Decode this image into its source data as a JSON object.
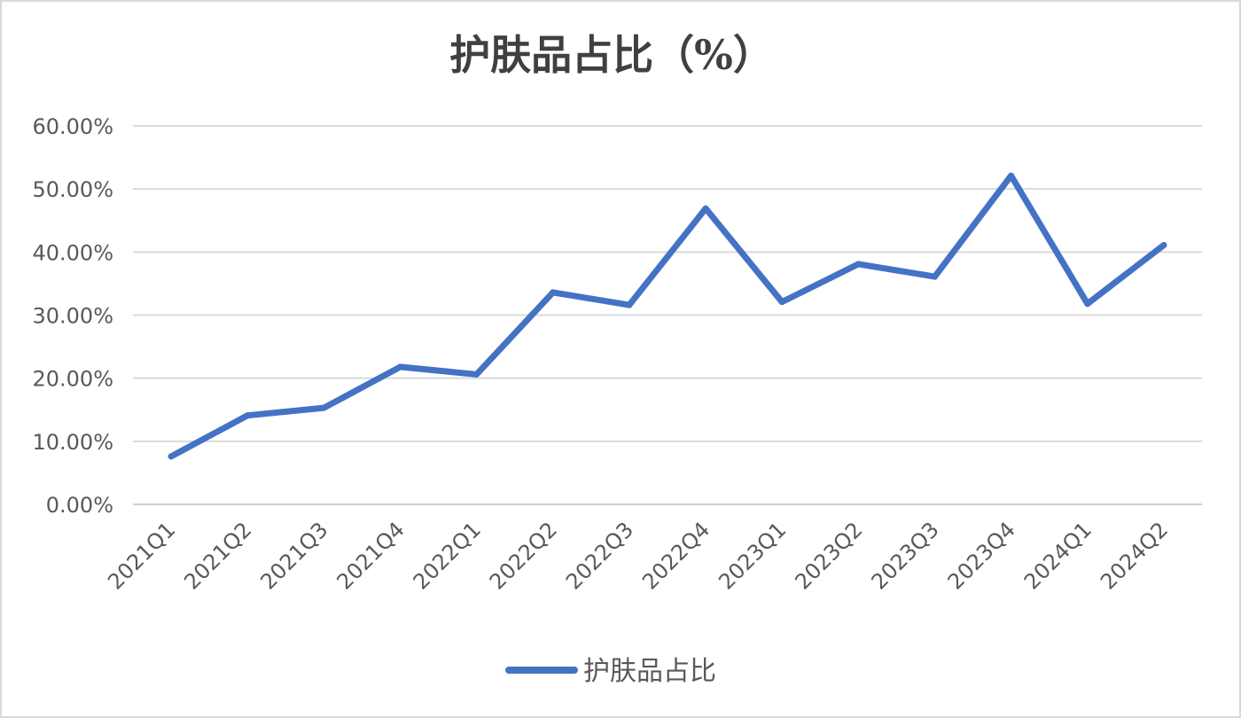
{
  "chart_data": {
    "type": "line",
    "title": "护肤品占比（%）",
    "xlabel": "",
    "ylabel": "",
    "categories": [
      "2021Q1",
      "2021Q2",
      "2021Q3",
      "2021Q4",
      "2022Q1",
      "2022Q2",
      "2022Q3",
      "2022Q4",
      "2023Q1",
      "2023Q2",
      "2023Q3",
      "2023Q4",
      "2024Q1",
      "2024Q2"
    ],
    "series": [
      {
        "name": "护肤品占比",
        "color": "#4472C4",
        "values": [
          7.6,
          14.1,
          15.3,
          21.8,
          20.6,
          33.6,
          31.6,
          46.9,
          32.1,
          38.1,
          36.1,
          52.1,
          31.8,
          41.1
        ]
      }
    ],
    "ylim": [
      0,
      60
    ],
    "yticks": [
      0,
      10,
      20,
      30,
      40,
      50,
      60
    ],
    "ytick_labels": [
      "0.00%",
      "10.00%",
      "20.00%",
      "30.00%",
      "40.00%",
      "50.00%",
      "60.00%"
    ],
    "grid": true,
    "legend": "bottom-center"
  }
}
